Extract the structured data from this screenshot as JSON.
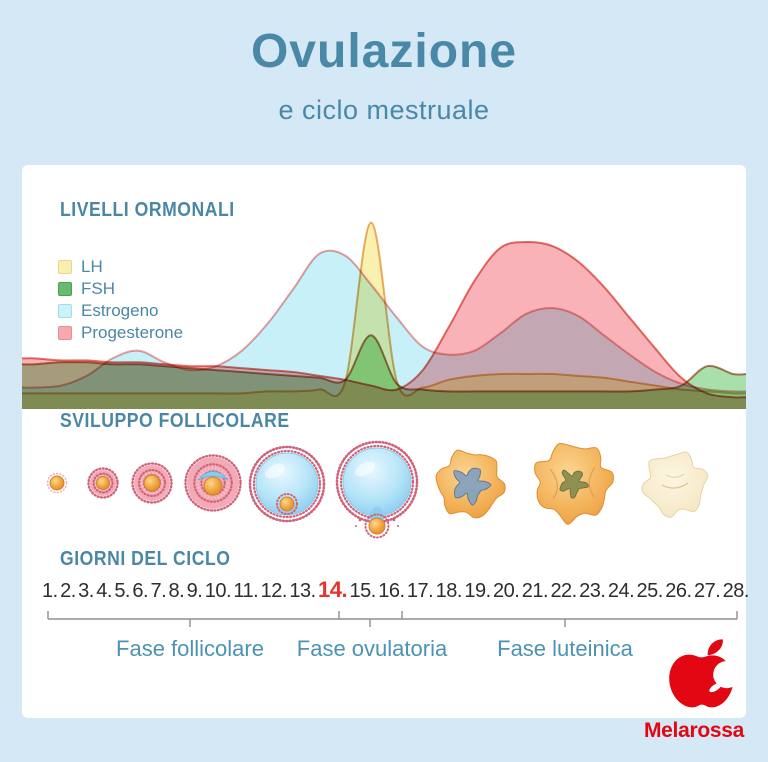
{
  "header": {
    "title": "Ovulazione",
    "subtitle": "e ciclo mestruale"
  },
  "sections": {
    "hormones": "LIVELLI ORMONALI",
    "follicles": "SVILUPPO FOLLICOLARE",
    "days": "GIORNI DEL CICLO"
  },
  "legend": [
    {
      "label": "LH",
      "color": "#f9efae",
      "border": "#e7d68c"
    },
    {
      "label": "FSH",
      "color": "#66bb6d",
      "border": "#4e9e58"
    },
    {
      "label": "Estrogeno",
      "color": "#c9f2fa",
      "border": "#a5dcea"
    },
    {
      "label": "Progesterone",
      "color": "#f8a9ad",
      "border": "#e98f94"
    }
  ],
  "days": {
    "list": [
      1,
      2,
      3,
      4,
      5,
      6,
      7,
      8,
      9,
      10,
      11,
      12,
      13,
      14,
      15,
      16,
      17,
      18,
      19,
      20,
      21,
      22,
      23,
      24,
      25,
      26,
      27,
      28
    ],
    "highlight": 14,
    "highlight_color": "#e5332c"
  },
  "phases": [
    {
      "label": "Fase follicolare"
    },
    {
      "label": "Fase ovulatoria"
    },
    {
      "label": "Fase luteinica"
    }
  ],
  "follicle_stages": [
    "primordial-follicle-icon",
    "primary-follicle-icon",
    "secondary-follicle-icon",
    "early-antral-follicle-icon",
    "mature-antral-follicle-icon",
    "ovulation-follicle-icon",
    "early-corpus-luteum-icon",
    "corpus-luteum-icon",
    "corpus-albicans-icon"
  ],
  "logo": {
    "brand": "Melarossa",
    "color": "#e30613",
    "icon": "apple-icon"
  },
  "colors": {
    "background": "#d5e8f5",
    "card": "#ffffff",
    "heading": "#4b87a5",
    "title": "#4a88a8",
    "day_number": "#2e2e2e"
  },
  "chart_data": {
    "type": "area",
    "title": "LIVELLI ORMONALI",
    "xlabel": "Giorni del ciclo",
    "ylabel": "",
    "x": [
      1,
      2,
      3,
      4,
      5,
      6,
      7,
      8,
      9,
      10,
      11,
      12,
      13,
      14,
      15,
      16,
      17,
      18,
      19,
      20,
      21,
      22,
      23,
      24,
      25,
      26,
      27,
      28
    ],
    "ylim": [
      0,
      100
    ],
    "y_unit": "relative hormone level (% of chart height, estimated)",
    "grid": false,
    "legend_position": "top-left",
    "series": [
      {
        "name": "LH",
        "fill": "#faf0a8",
        "stroke": "#ecae67",
        "values": [
          6,
          6,
          6,
          6,
          6,
          6,
          6,
          6,
          6,
          7,
          7,
          8,
          12,
          94,
          12,
          9,
          13,
          15,
          16,
          16,
          16,
          15,
          14,
          12,
          10,
          8,
          7,
          6
        ]
      },
      {
        "name": "FSH",
        "fill": "#9edca2",
        "stroke": "#c27a5e",
        "values": [
          21,
          22,
          22,
          21,
          21,
          20,
          19,
          18,
          17,
          16,
          15,
          14,
          13,
          36,
          11,
          8,
          7,
          7,
          7,
          7,
          7,
          7,
          7,
          7,
          8,
          10,
          20,
          16
        ]
      },
      {
        "name": "Estrogeno",
        "fill": "#c2eef8",
        "stroke": "#efa0a0",
        "values": [
          9,
          10,
          15,
          24,
          28,
          22,
          18,
          20,
          28,
          42,
          60,
          78,
          77,
          62,
          45,
          30,
          26,
          28,
          37,
          47,
          50,
          46,
          36,
          26,
          17,
          11,
          8,
          7
        ]
      },
      {
        "name": "Progesterone",
        "fill": "#f8abb0",
        "stroke": "#e2746a",
        "values": [
          24,
          23,
          23,
          22,
          22,
          21,
          20,
          20,
          19,
          18,
          17,
          15,
          13,
          10,
          8,
          18,
          40,
          64,
          81,
          84,
          82,
          74,
          61,
          45,
          29,
          14,
          6,
          4
        ]
      }
    ],
    "annotations": [
      {
        "text": "14",
        "note": "ovulation day highlighted in red on the day scale"
      }
    ]
  }
}
